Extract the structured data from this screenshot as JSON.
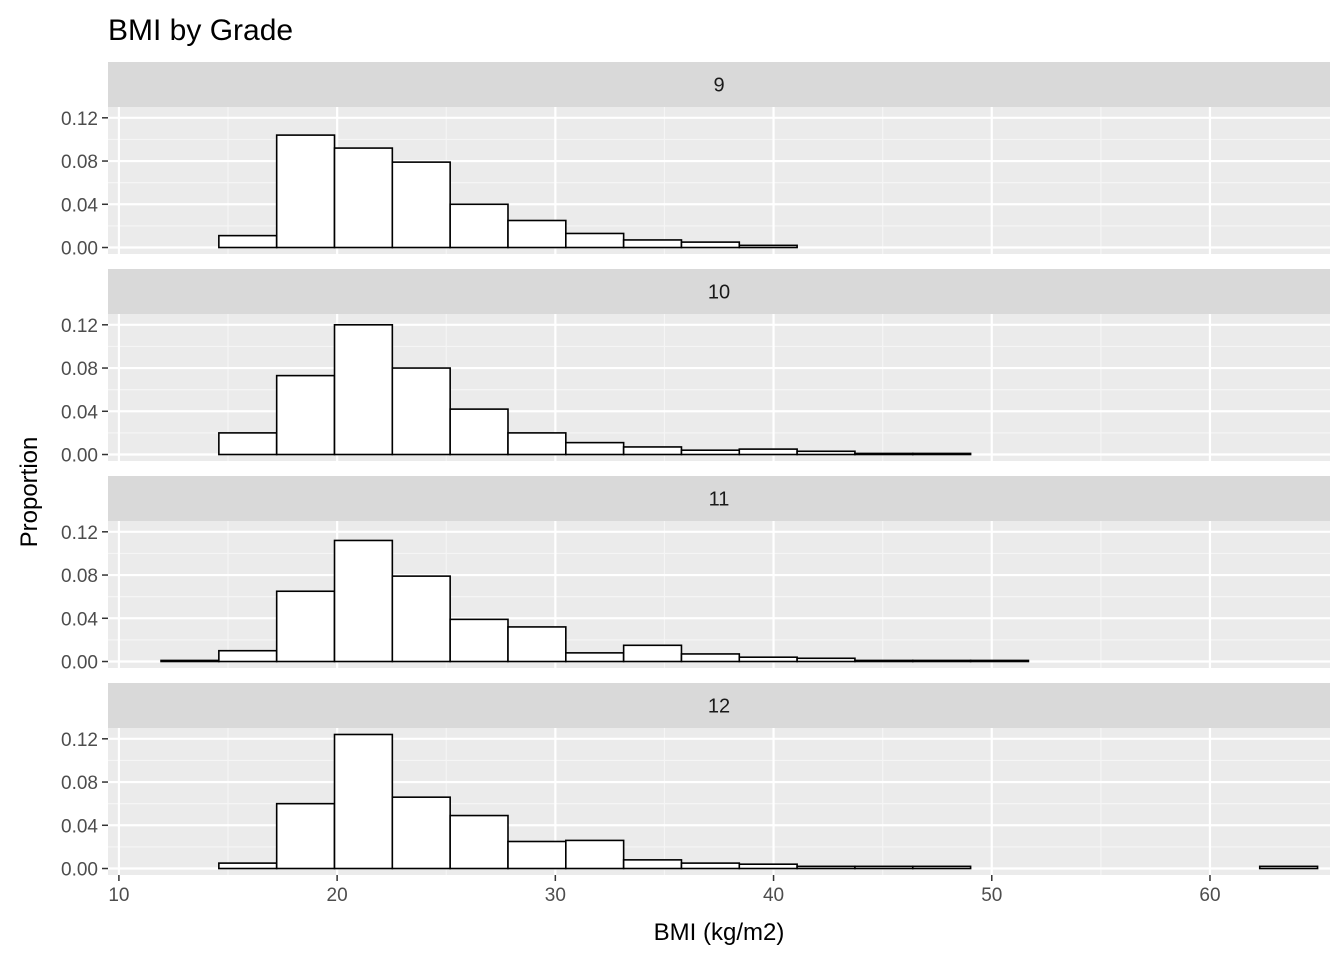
{
  "chart_data": {
    "type": "histogram-facet",
    "title": "BMI by Grade",
    "xlabel": "BMI (kg/m2)",
    "ylabel": "Proportion",
    "xlim": [
      9.5,
      65.5
    ],
    "ylim": [
      -0.006,
      0.13
    ],
    "xticks": [
      10,
      20,
      30,
      40,
      50,
      60
    ],
    "xtick_labels": [
      "10",
      "20",
      "30",
      "40",
      "50",
      "60"
    ],
    "yticks": [
      0,
      0.04,
      0.08,
      0.12
    ],
    "ytick_labels": [
      "0.00",
      "0.04",
      "0.08",
      "0.12"
    ],
    "bin_start": 11.93,
    "bin_width": 2.65,
    "colors": {
      "panel_bg": "#ebebeb",
      "strip_bg": "#d9d9d9",
      "grid_major": "#ffffff",
      "grid_minor": "#f5f5f5",
      "bar_fill": "#ffffff",
      "bar_stroke": "#000000"
    },
    "facets": [
      {
        "label": "9",
        "values": [
          0,
          0.011,
          0.104,
          0.092,
          0.079,
          0.04,
          0.025,
          0.013,
          0.007,
          0.005,
          0.002,
          0,
          0,
          0,
          0,
          0,
          0,
          0,
          0,
          0
        ]
      },
      {
        "label": "10",
        "values": [
          0,
          0.02,
          0.073,
          0.12,
          0.08,
          0.042,
          0.02,
          0.011,
          0.007,
          0.004,
          0.005,
          0.003,
          0.001,
          0.001,
          0,
          0,
          0,
          0,
          0,
          0
        ]
      },
      {
        "label": "11",
        "values": [
          0.001,
          0.01,
          0.065,
          0.112,
          0.079,
          0.039,
          0.032,
          0.008,
          0.015,
          0.007,
          0.004,
          0.003,
          0.001,
          0.001,
          0.001,
          0,
          0,
          0,
          0,
          0
        ]
      },
      {
        "label": "12",
        "values": [
          0,
          0.005,
          0.06,
          0.124,
          0.066,
          0.049,
          0.025,
          0.026,
          0.008,
          0.005,
          0.004,
          0.002,
          0.002,
          0.002,
          0,
          0,
          0,
          0,
          0,
          0.002
        ]
      }
    ]
  }
}
